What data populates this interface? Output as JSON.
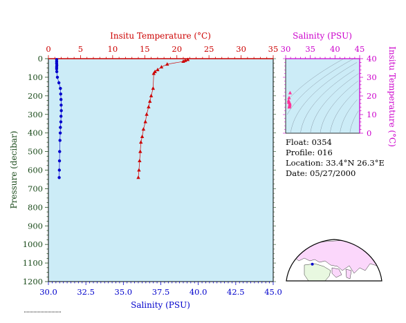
{
  "colors": {
    "panel_bg": "#ccecf7",
    "temperature": "#cc0000",
    "salinity": "#0000cc",
    "pressure_axis": "#1a4a1a",
    "inset_axis": "#cc00cc",
    "inset_points": "#ff3399",
    "map_land": "#fbd7fb",
    "map_land_alt": "#e8f8e0",
    "float_marker": "#0000cc"
  },
  "chart_data": [
    {
      "type": "scatter",
      "title": "",
      "ylabel": "Pressure (decibar)",
      "ylim": [
        1200,
        0
      ],
      "y_ticks": [
        0,
        100,
        200,
        300,
        400,
        500,
        600,
        700,
        800,
        900,
        1000,
        1100,
        1200
      ],
      "top_axis": {
        "label": "Insitu Temperature (°C)",
        "lim": [
          0,
          35
        ],
        "ticks": [
          0,
          5,
          10,
          15,
          20,
          25,
          30,
          35
        ]
      },
      "bottom_axis": {
        "label": "Salinity (PSU)",
        "lim": [
          30.0,
          45.0
        ],
        "ticks": [
          "30.0",
          "32.5",
          "35.0",
          "37.5",
          "40.0",
          "42.5",
          "45.0"
        ]
      },
      "grid": false,
      "series": [
        {
          "variable": "temperature",
          "marker": "triangle",
          "points": [
            {
              "x": 21.7,
              "y": 5
            },
            {
              "x": 21.3,
              "y": 10
            },
            {
              "x": 21.0,
              "y": 15
            },
            {
              "x": 18.5,
              "y": 30
            },
            {
              "x": 17.6,
              "y": 45
            },
            {
              "x": 17.0,
              "y": 60
            },
            {
              "x": 16.6,
              "y": 70
            },
            {
              "x": 16.4,
              "y": 80
            },
            {
              "x": 16.3,
              "y": 160
            },
            {
              "x": 16.0,
              "y": 200
            },
            {
              "x": 15.8,
              "y": 230
            },
            {
              "x": 15.6,
              "y": 260
            },
            {
              "x": 15.3,
              "y": 300
            },
            {
              "x": 15.1,
              "y": 340
            },
            {
              "x": 14.8,
              "y": 380
            },
            {
              "x": 14.6,
              "y": 420
            },
            {
              "x": 14.4,
              "y": 450
            },
            {
              "x": 14.3,
              "y": 500
            },
            {
              "x": 14.2,
              "y": 550
            },
            {
              "x": 14.1,
              "y": 600
            },
            {
              "x": 14.0,
              "y": 640
            }
          ]
        },
        {
          "variable": "salinity",
          "marker": "circle",
          "points": [
            {
              "x": 30.55,
              "y": 5
            },
            {
              "x": 30.55,
              "y": 15
            },
            {
              "x": 30.55,
              "y": 25
            },
            {
              "x": 30.56,
              "y": 35
            },
            {
              "x": 30.55,
              "y": 45
            },
            {
              "x": 30.55,
              "y": 55
            },
            {
              "x": 30.56,
              "y": 70
            },
            {
              "x": 30.6,
              "y": 100
            },
            {
              "x": 30.7,
              "y": 130
            },
            {
              "x": 30.8,
              "y": 160
            },
            {
              "x": 30.82,
              "y": 190
            },
            {
              "x": 30.84,
              "y": 220
            },
            {
              "x": 30.85,
              "y": 250
            },
            {
              "x": 30.86,
              "y": 280
            },
            {
              "x": 30.84,
              "y": 310
            },
            {
              "x": 30.83,
              "y": 340
            },
            {
              "x": 30.8,
              "y": 370
            },
            {
              "x": 30.79,
              "y": 400
            },
            {
              "x": 30.77,
              "y": 440
            },
            {
              "x": 30.75,
              "y": 500
            },
            {
              "x": 30.74,
              "y": 550
            },
            {
              "x": 30.73,
              "y": 600
            },
            {
              "x": 30.72,
              "y": 640
            }
          ]
        }
      ]
    },
    {
      "type": "scatter",
      "title": "",
      "xlabel": "Salinity (PSU)",
      "ylabel": "Insitu Temperature (°C)",
      "xlim": [
        30,
        45
      ],
      "ylim": [
        0,
        40
      ],
      "x_ticks": [
        30,
        35,
        40,
        45
      ],
      "y_ticks": [
        0,
        10,
        20,
        30,
        40
      ],
      "density_contours": true,
      "points": [
        {
          "x": 30.9,
          "y": 21.6
        },
        {
          "x": 30.7,
          "y": 19.0
        },
        {
          "x": 30.6,
          "y": 17.5
        },
        {
          "x": 30.6,
          "y": 16.6
        },
        {
          "x": 30.8,
          "y": 16.3
        },
        {
          "x": 30.85,
          "y": 15.8
        },
        {
          "x": 30.84,
          "y": 15.3
        },
        {
          "x": 30.8,
          "y": 14.8
        },
        {
          "x": 30.77,
          "y": 14.4
        },
        {
          "x": 30.74,
          "y": 14.1
        },
        {
          "x": 30.72,
          "y": 14.0
        }
      ]
    }
  ],
  "float_info": {
    "float_line": "Float:  0354",
    "profile_line": "Profile:  016",
    "location_line": "Location:  33.4°N  26.3°E",
    "date_line": "Date:  05/27/2000"
  },
  "map": {
    "marker_lat": 33.4,
    "marker_lon": 26.3
  }
}
